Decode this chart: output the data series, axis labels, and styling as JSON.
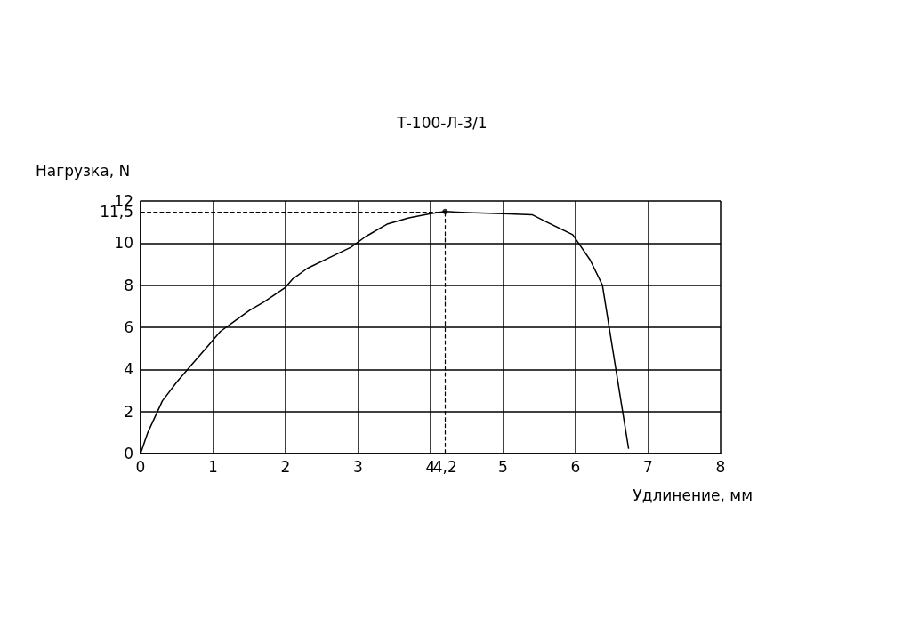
{
  "chart_data": {
    "type": "line",
    "title": "Т-100-Л-3/1",
    "xlabel": "Удлинение, мм",
    "ylabel": "Нагрузка, N",
    "xlim": [
      0,
      8
    ],
    "ylim": [
      0,
      12
    ],
    "xticks": [
      0,
      1,
      2,
      3,
      4,
      {
        "value": 4.2,
        "label": "4,2"
      },
      5,
      6,
      7,
      8
    ],
    "yticks": [
      0,
      2,
      4,
      6,
      8,
      10,
      {
        "value": 11.5,
        "label": "11,5"
      },
      12
    ],
    "grid": true,
    "marker": "none",
    "line_style": "solid",
    "series": [
      {
        "color": "#000000",
        "x": [
          0,
          0.1,
          0.3,
          0.5,
          0.7,
          0.9,
          1.1,
          1.3,
          1.5,
          1.7,
          2.0,
          2.1,
          2.3,
          2.6,
          2.9,
          3.1,
          3.4,
          3.7,
          4.0,
          4.2,
          4.5,
          5.0,
          5.4,
          5.6,
          5.96,
          6.2,
          6.37,
          6.73
        ],
        "values": [
          0,
          1,
          2.5,
          3.4,
          4.2,
          5,
          5.8,
          6.3,
          6.8,
          7.2,
          7.9,
          8.3,
          8.8,
          9.3,
          9.8,
          10.3,
          10.9,
          11.2,
          11.4,
          11.5,
          11.45,
          11.4,
          11.35,
          11.0,
          10.4,
          9.2,
          8,
          0.25
        ]
      },
      {
        "type": "scatter",
        "color": "#000000",
        "x": [
          4.2
        ],
        "values": [
          11.5
        ],
        "marker": "circle"
      }
    ],
    "ref_lines": [
      {
        "axis": "x",
        "value": 4.2,
        "line_style": "dashed"
      },
      {
        "axis": "y",
        "value": 11.5,
        "line_style": "dashed"
      }
    ]
  }
}
